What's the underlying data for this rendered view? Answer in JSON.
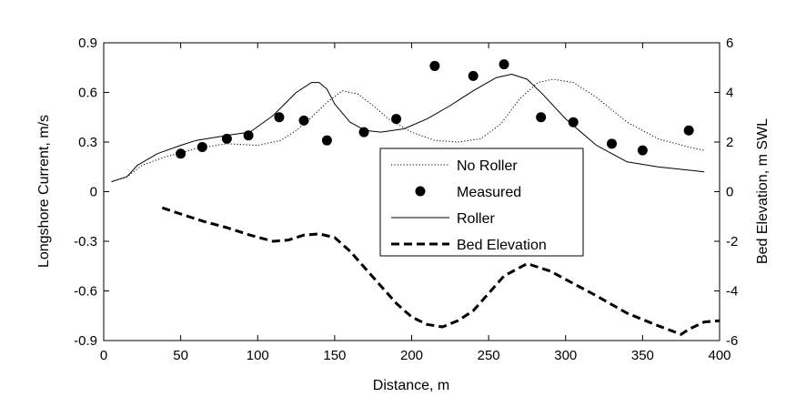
{
  "chart_data": {
    "type": "line",
    "title": "",
    "xlabel": "Distance, m",
    "ylabel_left": "Longshore Current, m/s",
    "ylabel_right": "Bed Elevation, m SWL",
    "xlim": [
      0,
      400
    ],
    "ylim_left": [
      -0.9,
      0.9
    ],
    "ylim_right": [
      -6,
      6
    ],
    "x_ticks": [
      "0",
      "50",
      "100",
      "150",
      "200",
      "250",
      "300",
      "350",
      "400"
    ],
    "y_ticks_left": [
      "-0.9",
      "-0.6",
      "-0.3",
      "0",
      "0.3",
      "0.6",
      "0.9"
    ],
    "y_ticks_right": [
      "-6",
      "-4",
      "-2",
      "0",
      "2",
      "4",
      "6"
    ],
    "grid": false,
    "legend_position": "center-right",
    "series": [
      {
        "name": "No Roller",
        "axis": "left",
        "style": "dotted",
        "color": "#000000",
        "x": [
          5,
          15,
          25,
          40,
          60,
          80,
          100,
          115,
          125,
          135,
          145,
          155,
          165,
          175,
          185,
          200,
          215,
          230,
          245,
          258,
          270,
          282,
          292,
          305,
          320,
          340,
          360,
          380,
          390
        ],
        "y": [
          0.06,
          0.09,
          0.16,
          0.21,
          0.26,
          0.29,
          0.28,
          0.31,
          0.37,
          0.45,
          0.54,
          0.61,
          0.59,
          0.52,
          0.44,
          0.36,
          0.31,
          0.3,
          0.32,
          0.41,
          0.56,
          0.66,
          0.68,
          0.66,
          0.57,
          0.42,
          0.32,
          0.27,
          0.25
        ]
      },
      {
        "name": "Measured",
        "axis": "left",
        "style": "marker",
        "color": "#000000",
        "x": [
          50,
          64,
          80,
          94,
          114,
          130,
          145,
          169,
          190,
          215,
          240,
          260,
          284,
          305,
          330,
          350,
          380
        ],
        "y": [
          0.23,
          0.27,
          0.32,
          0.34,
          0.45,
          0.43,
          0.31,
          0.36,
          0.44,
          0.76,
          0.7,
          0.77,
          0.45,
          0.42,
          0.29,
          0.25,
          0.37
        ]
      },
      {
        "name": "Roller",
        "axis": "left",
        "style": "solid",
        "color": "#000000",
        "x": [
          5,
          15,
          22,
          35,
          50,
          60,
          80,
          95,
          110,
          125,
          135,
          140,
          145,
          150,
          160,
          170,
          180,
          195,
          210,
          225,
          240,
          255,
          265,
          275,
          285,
          300,
          320,
          340,
          360,
          380,
          390
        ],
        "y": [
          0.06,
          0.09,
          0.16,
          0.23,
          0.28,
          0.31,
          0.34,
          0.36,
          0.46,
          0.6,
          0.66,
          0.66,
          0.62,
          0.53,
          0.42,
          0.37,
          0.36,
          0.38,
          0.44,
          0.52,
          0.61,
          0.69,
          0.71,
          0.68,
          0.59,
          0.44,
          0.28,
          0.18,
          0.15,
          0.13,
          0.12
        ]
      },
      {
        "name": "Bed Elevation",
        "axis": "right",
        "style": "dashed",
        "color": "#000000",
        "x": [
          38,
          50,
          65,
          80,
          95,
          110,
          120,
          130,
          140,
          150,
          160,
          170,
          180,
          190,
          200,
          210,
          220,
          230,
          240,
          250,
          260,
          275,
          290,
          305,
          320,
          340,
          360,
          375,
          380,
          390,
          400
        ],
        "y": [
          -0.65,
          -0.9,
          -1.2,
          -1.45,
          -1.75,
          -2.0,
          -1.95,
          -1.75,
          -1.7,
          -1.85,
          -2.4,
          -3.1,
          -3.8,
          -4.5,
          -5.05,
          -5.35,
          -5.45,
          -5.2,
          -4.8,
          -4.1,
          -3.4,
          -2.9,
          -3.2,
          -3.7,
          -4.2,
          -4.9,
          -5.4,
          -5.75,
          -5.55,
          -5.25,
          -5.2
        ]
      }
    ]
  }
}
